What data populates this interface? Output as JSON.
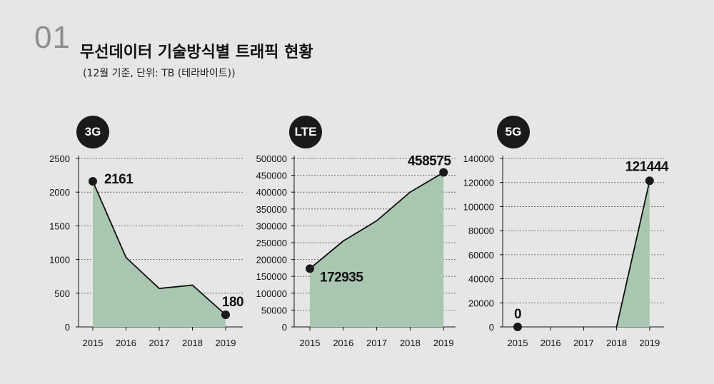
{
  "header": {
    "number": "01",
    "title": "무선데이터 기술방식별 트래픽 현황",
    "subtitle": "(12월 기준, 단위: TB (테라바이트))"
  },
  "colors": {
    "area": "#a9c6b1",
    "line": "#111111",
    "background": "#e6e6e6",
    "badge": "#1a1a1a"
  },
  "chart_data": [
    {
      "type": "area",
      "badge": "3G",
      "categories": [
        "2015",
        "2016",
        "2017",
        "2018",
        "2019"
      ],
      "values": [
        2161,
        1030,
        570,
        620,
        180
      ],
      "ylim": [
        0,
        2500
      ],
      "yticks": [
        0,
        500,
        1000,
        1500,
        2000,
        2500
      ],
      "labels": [
        {
          "index": 0,
          "text": "2161"
        },
        {
          "index": 4,
          "text": "180"
        }
      ],
      "grid": true
    },
    {
      "type": "area",
      "badge": "LTE",
      "categories": [
        "2015",
        "2016",
        "2017",
        "2018",
        "2019"
      ],
      "values": [
        172935,
        255000,
        315000,
        400000,
        458575
      ],
      "ylim": [
        0,
        500000
      ],
      "yticks": [
        0,
        50000,
        100000,
        150000,
        200000,
        250000,
        300000,
        350000,
        400000,
        450000,
        500000
      ],
      "labels": [
        {
          "index": 0,
          "text": "172935"
        },
        {
          "index": 4,
          "text": "458575"
        }
      ],
      "grid": true
    },
    {
      "type": "area",
      "badge": "5G",
      "categories": [
        "2015",
        "2016",
        "2017",
        "2018",
        "2019"
      ],
      "values": [
        0,
        0,
        0,
        0,
        121444
      ],
      "ylim": [
        0,
        140000
      ],
      "yticks": [
        0,
        20000,
        40000,
        60000,
        80000,
        100000,
        120000,
        140000
      ],
      "labels": [
        {
          "index": 0,
          "text": "0"
        },
        {
          "index": 4,
          "text": "121444"
        }
      ],
      "grid": true
    }
  ]
}
